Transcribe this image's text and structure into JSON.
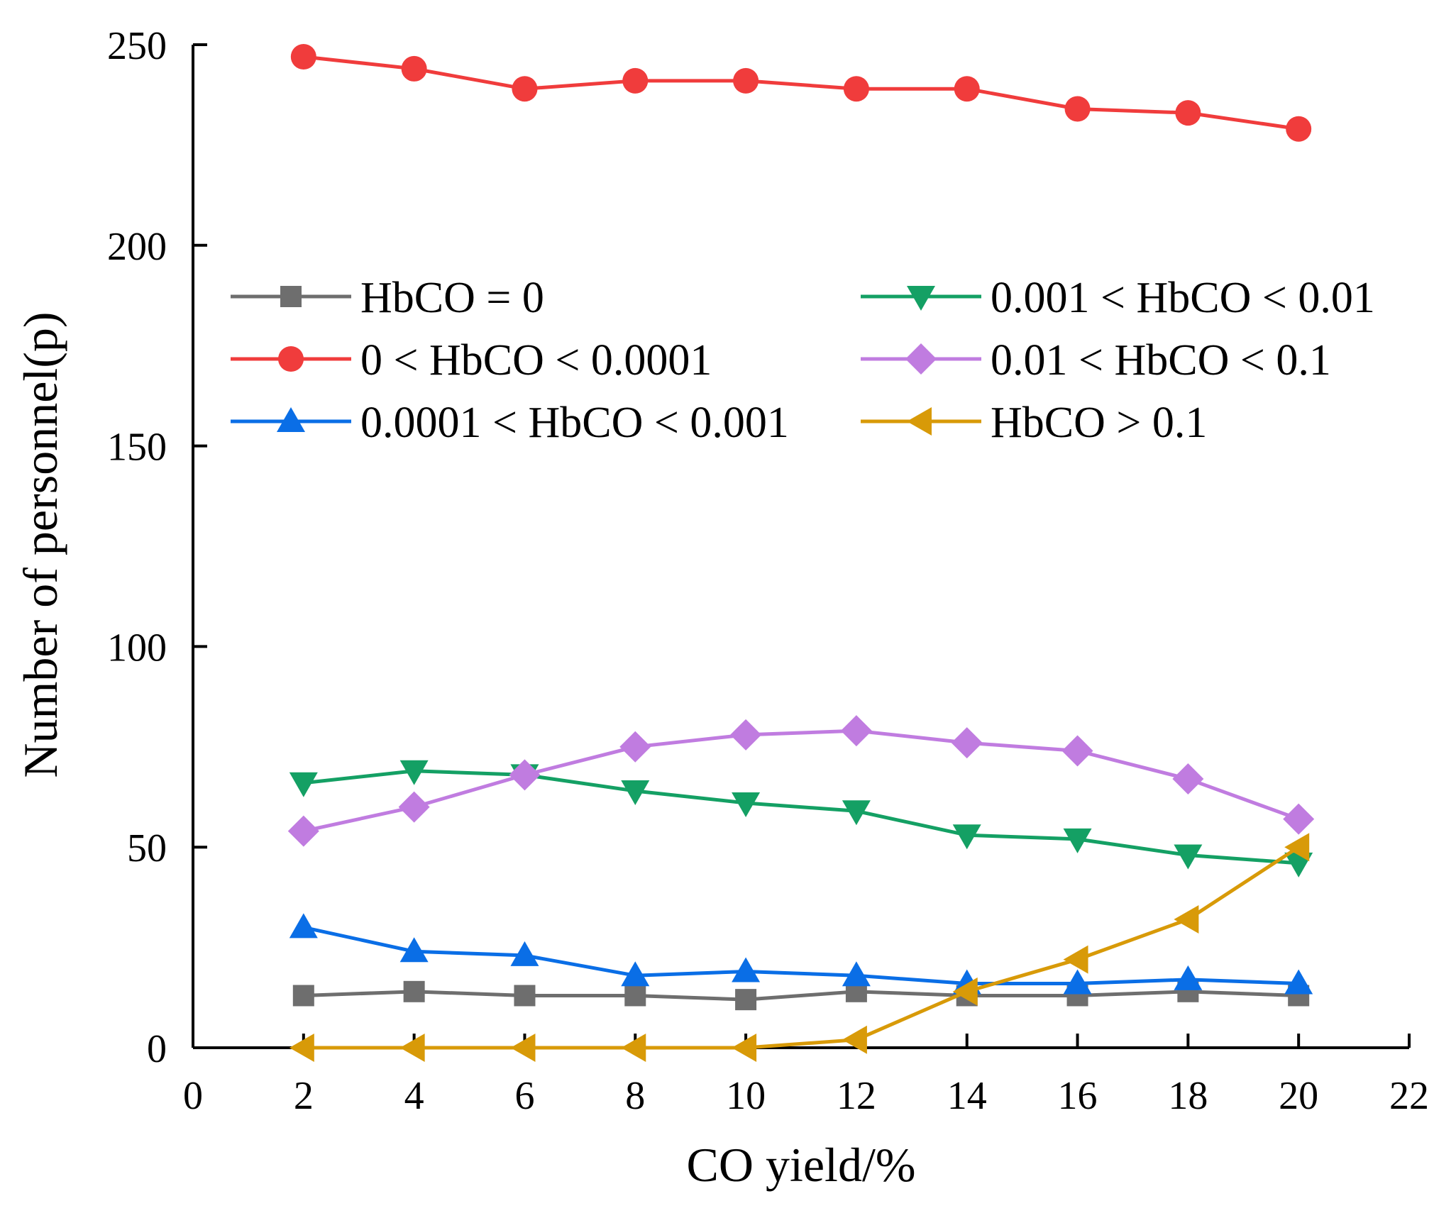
{
  "chart_data": {
    "type": "line",
    "title": "",
    "xlabel": "CO yield/%",
    "ylabel": "Number of personnel(p)",
    "xlim": [
      0,
      22
    ],
    "ylim": [
      0,
      250
    ],
    "xticks": [
      0,
      2,
      4,
      6,
      8,
      10,
      12,
      14,
      16,
      18,
      20,
      22
    ],
    "yticks": [
      0,
      50,
      100,
      150,
      200,
      250
    ],
    "grid": false,
    "legend_position": "center-left",
    "x": [
      2,
      4,
      6,
      8,
      10,
      12,
      14,
      16,
      18,
      20
    ],
    "series": [
      {
        "name": "HbCO = 0",
        "color": "#6e6e6e",
        "marker": "square",
        "values": [
          13,
          14,
          13,
          13,
          12,
          14,
          13,
          13,
          14,
          13
        ]
      },
      {
        "name": "0 < HbCO < 0.0001",
        "color": "#f03c3c",
        "marker": "circle",
        "values": [
          247,
          244,
          239,
          241,
          241,
          239,
          239,
          234,
          233,
          229
        ]
      },
      {
        "name": "0.0001 < HbCO < 0.001",
        "color": "#0a6ee6",
        "marker": "triangle-up",
        "values": [
          30,
          24,
          23,
          18,
          19,
          18,
          16,
          16,
          17,
          16
        ]
      },
      {
        "name": "0.001 < HbCO < 0.01",
        "color": "#14a064",
        "marker": "triangle-down",
        "values": [
          66,
          69,
          68,
          64,
          61,
          59,
          53,
          52,
          48,
          46
        ]
      },
      {
        "name": "0.01 < HbCO < 0.1",
        "color": "#c07ce0",
        "marker": "diamond",
        "values": [
          54,
          60,
          68,
          75,
          78,
          79,
          76,
          74,
          67,
          57
        ]
      },
      {
        "name": "HbCO > 0.1",
        "color": "#d89a08",
        "marker": "triangle-left",
        "values": [
          0,
          0,
          0,
          0,
          0,
          2,
          14,
          22,
          32,
          50
        ]
      }
    ]
  }
}
